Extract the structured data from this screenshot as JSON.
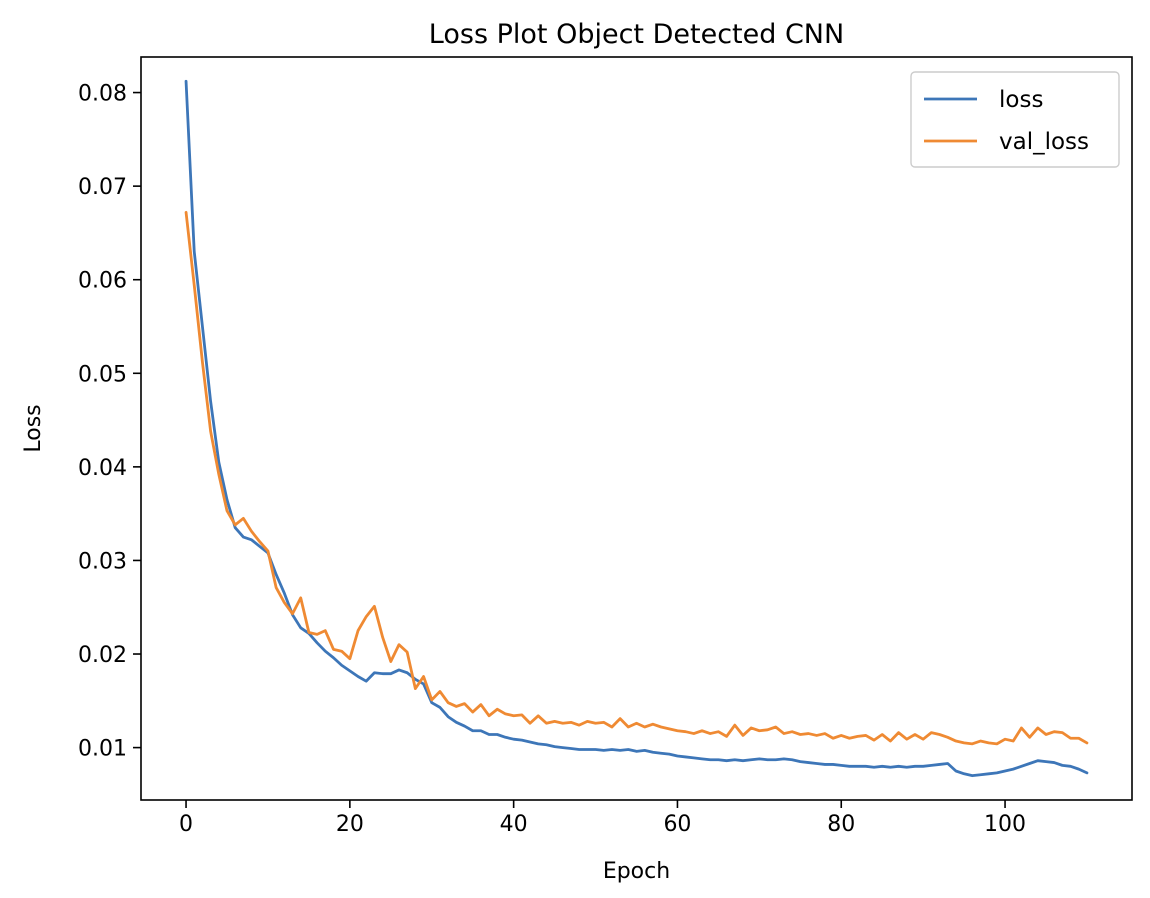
{
  "chart_data": {
    "type": "line",
    "title": "Loss Plot Object Detected CNN",
    "xlabel": "Epoch",
    "ylabel": "Loss",
    "xlim": [
      -5.5,
      115.5
    ],
    "ylim": [
      0.0044,
      0.0838
    ],
    "xticks": [
      0,
      20,
      40,
      60,
      80,
      100
    ],
    "xtick_labels": [
      "0",
      "20",
      "40",
      "60",
      "80",
      "100"
    ],
    "yticks": [
      0.01,
      0.02,
      0.03,
      0.04,
      0.05,
      0.06,
      0.07,
      0.08
    ],
    "ytick_labels": [
      "0.01",
      "0.02",
      "0.03",
      "0.04",
      "0.05",
      "0.06",
      "0.07",
      "0.08"
    ],
    "grid": false,
    "legend_position": "top-right",
    "x": [
      0,
      1,
      2,
      3,
      4,
      5,
      6,
      7,
      8,
      9,
      10,
      11,
      12,
      13,
      14,
      15,
      16,
      17,
      18,
      19,
      20,
      21,
      22,
      23,
      24,
      25,
      26,
      27,
      28,
      29,
      30,
      31,
      32,
      33,
      34,
      35,
      36,
      37,
      38,
      39,
      40,
      41,
      42,
      43,
      44,
      45,
      46,
      47,
      48,
      49,
      50,
      51,
      52,
      53,
      54,
      55,
      56,
      57,
      58,
      59,
      60,
      61,
      62,
      63,
      64,
      65,
      66,
      67,
      68,
      69,
      70,
      71,
      72,
      73,
      74,
      75,
      76,
      77,
      78,
      79,
      80,
      81,
      82,
      83,
      84,
      85,
      86,
      87,
      88,
      89,
      90,
      91,
      92,
      93,
      94,
      95,
      96,
      97,
      98,
      99,
      100,
      101,
      102,
      103,
      104,
      105,
      106,
      107,
      108,
      109,
      110
    ],
    "series": [
      {
        "name": "loss",
        "color": "#3d76b8",
        "values": [
          0.0812,
          0.063,
          0.055,
          0.047,
          0.0405,
          0.0365,
          0.0335,
          0.0325,
          0.0322,
          0.0315,
          0.0308,
          0.0285,
          0.0265,
          0.0242,
          0.0228,
          0.0222,
          0.0212,
          0.0203,
          0.0196,
          0.0188,
          0.0182,
          0.0176,
          0.0171,
          0.018,
          0.0179,
          0.0179,
          0.0183,
          0.018,
          0.0173,
          0.0168,
          0.0148,
          0.0143,
          0.0133,
          0.0127,
          0.0123,
          0.0118,
          0.0118,
          0.0114,
          0.0114,
          0.0111,
          0.0109,
          0.0108,
          0.0106,
          0.0104,
          0.0103,
          0.0101,
          0.01,
          0.0099,
          0.0098,
          0.0098,
          0.0098,
          0.0097,
          0.0098,
          0.0097,
          0.0098,
          0.0096,
          0.0097,
          0.0095,
          0.0094,
          0.0093,
          0.0091,
          0.009,
          0.0089,
          0.0088,
          0.0087,
          0.0087,
          0.0086,
          0.0087,
          0.0086,
          0.0087,
          0.0088,
          0.0087,
          0.0087,
          0.0088,
          0.0087,
          0.0085,
          0.0084,
          0.0083,
          0.0082,
          0.0082,
          0.0081,
          0.008,
          0.008,
          0.008,
          0.0079,
          0.008,
          0.0079,
          0.008,
          0.0079,
          0.008,
          0.008,
          0.0081,
          0.0082,
          0.0083,
          0.0075,
          0.0072,
          0.007,
          0.0071,
          0.0072,
          0.0073,
          0.0075,
          0.0077,
          0.008,
          0.0083,
          0.0086,
          0.0085,
          0.0084,
          0.0081,
          0.008,
          0.0077,
          0.0073
        ]
      },
      {
        "name": "val_loss",
        "color": "#ef8a33",
        "values": [
          0.0672,
          0.0594,
          0.0512,
          0.0438,
          0.0392,
          0.0353,
          0.0338,
          0.0345,
          0.0331,
          0.032,
          0.031,
          0.0271,
          0.0255,
          0.0243,
          0.026,
          0.0223,
          0.0221,
          0.0225,
          0.0205,
          0.0203,
          0.0195,
          0.0225,
          0.024,
          0.0251,
          0.0218,
          0.0192,
          0.021,
          0.0202,
          0.0163,
          0.0176,
          0.0151,
          0.016,
          0.0148,
          0.0144,
          0.0147,
          0.0138,
          0.0146,
          0.0134,
          0.0141,
          0.0136,
          0.0134,
          0.0135,
          0.0126,
          0.0134,
          0.0126,
          0.0128,
          0.0126,
          0.0127,
          0.0124,
          0.0128,
          0.0126,
          0.0127,
          0.0122,
          0.0131,
          0.0122,
          0.0126,
          0.0122,
          0.0125,
          0.0122,
          0.012,
          0.0118,
          0.0117,
          0.0115,
          0.0118,
          0.0115,
          0.0117,
          0.0112,
          0.0124,
          0.0113,
          0.0121,
          0.0118,
          0.0119,
          0.0122,
          0.0115,
          0.0117,
          0.0114,
          0.0115,
          0.0113,
          0.0115,
          0.011,
          0.0113,
          0.011,
          0.0112,
          0.0113,
          0.0108,
          0.0114,
          0.0107,
          0.0116,
          0.0109,
          0.0114,
          0.0109,
          0.0116,
          0.0114,
          0.0111,
          0.0107,
          0.0105,
          0.0104,
          0.0107,
          0.0105,
          0.0104,
          0.0109,
          0.0107,
          0.0121,
          0.0111,
          0.0121,
          0.0114,
          0.0117,
          0.0116,
          0.011,
          0.011,
          0.0105
        ]
      }
    ]
  }
}
